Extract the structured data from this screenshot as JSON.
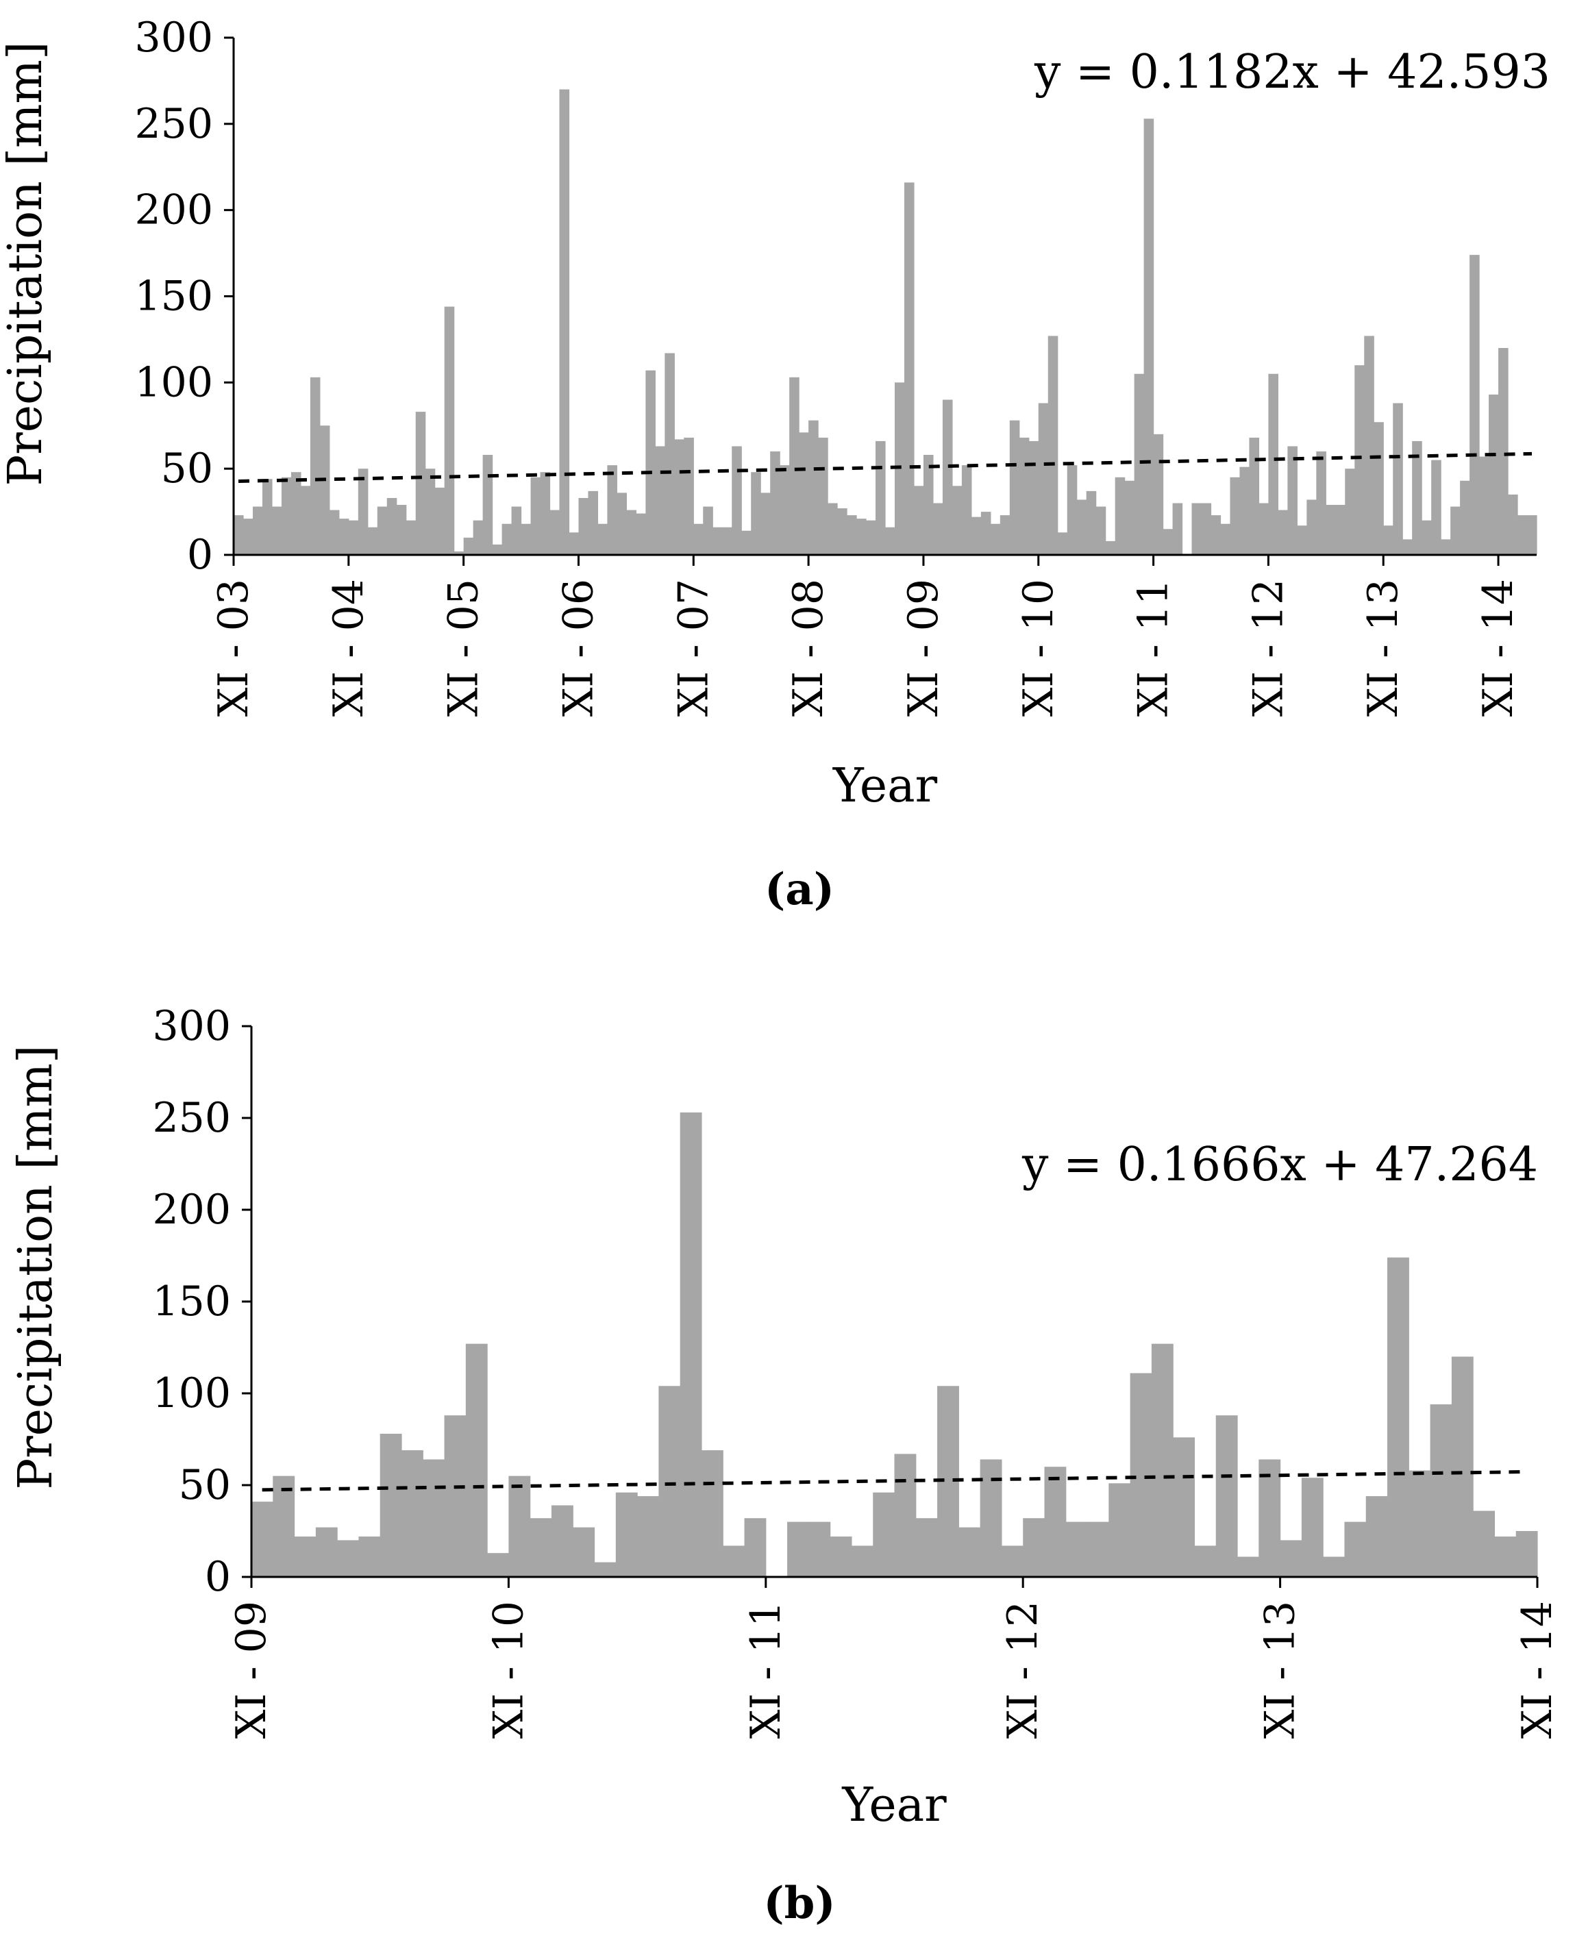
{
  "chart_data": [
    {
      "type": "bar",
      "panel_label": "(a)",
      "xlabel": "Year",
      "ylabel": "Precipitation [mm]",
      "ylim": [
        0,
        300
      ],
      "yticks": [
        0,
        50,
        100,
        150,
        200,
        250,
        300
      ],
      "xtick_labels": [
        "XI - 03",
        "XI - 04",
        "XI - 05",
        "XI - 06",
        "XI - 07",
        "XI - 08",
        "XI - 09",
        "XI - 10",
        "XI - 11",
        "XI - 12",
        "XI - 13",
        "XI - 14"
      ],
      "months_per_tick": 12,
      "trendline": {
        "slope": 0.1182,
        "intercept": 42.593,
        "style": "dashed",
        "label": "y = 0.1182x + 42.593"
      },
      "bar_color": "#a6a6a6",
      "series": [
        {
          "values": [
            23,
            21,
            28,
            44,
            28,
            45,
            48,
            40,
            103,
            75,
            26,
            21,
            20,
            50,
            16,
            28,
            33,
            29,
            20,
            83,
            50,
            39,
            144,
            2,
            10,
            20,
            58,
            6,
            18,
            28,
            18,
            45,
            48,
            26,
            270,
            13,
            33,
            37,
            18,
            52,
            36,
            26,
            24,
            107,
            63,
            117,
            67,
            68,
            18,
            28,
            16,
            16,
            63,
            14,
            48,
            36,
            60,
            52,
            103,
            71,
            78,
            68,
            30,
            27,
            23,
            21,
            20,
            66,
            16,
            100,
            216,
            40,
            58,
            30,
            90,
            40,
            52,
            22,
            25,
            18,
            23,
            78,
            68,
            66,
            88,
            127,
            13,
            52,
            32,
            37,
            28,
            8,
            45,
            43,
            105,
            253,
            70,
            15,
            30,
            0,
            30,
            30,
            23,
            18,
            45,
            51,
            68,
            30,
            105,
            26,
            63,
            17,
            32,
            60,
            29,
            29,
            50,
            110,
            127,
            77,
            17,
            88,
            9,
            66,
            20,
            55,
            9,
            28,
            43,
            174,
            57,
            93,
            120,
            35,
            23,
            23
          ]
        }
      ]
    },
    {
      "type": "bar",
      "panel_label": "(b)",
      "xlabel": "Year",
      "ylabel": "Precipitation [mm]",
      "ylim": [
        0,
        300
      ],
      "yticks": [
        0,
        50,
        100,
        150,
        200,
        250,
        300
      ],
      "xtick_labels": [
        "XI - 09",
        "XI - 10",
        "XI - 11",
        "XI - 12",
        "XI - 13",
        "XI - 14"
      ],
      "months_per_tick": 12,
      "trendline": {
        "slope": 0.1666,
        "intercept": 47.264,
        "style": "dashed",
        "label": "y = 0.1666x + 47.264"
      },
      "bar_color": "#a6a6a6",
      "series": [
        {
          "values": [
            41,
            55,
            22,
            27,
            20,
            22,
            78,
            69,
            64,
            88,
            127,
            13,
            55,
            32,
            39,
            27,
            8,
            46,
            44,
            104,
            253,
            69,
            17,
            32,
            0,
            30,
            30,
            22,
            17,
            46,
            67,
            32,
            104,
            27,
            64,
            17,
            32,
            60,
            30,
            30,
            51,
            111,
            127,
            76,
            17,
            88,
            11,
            64,
            20,
            54,
            11,
            30,
            44,
            174,
            58,
            94,
            120,
            36,
            22,
            25
          ]
        }
      ]
    }
  ]
}
